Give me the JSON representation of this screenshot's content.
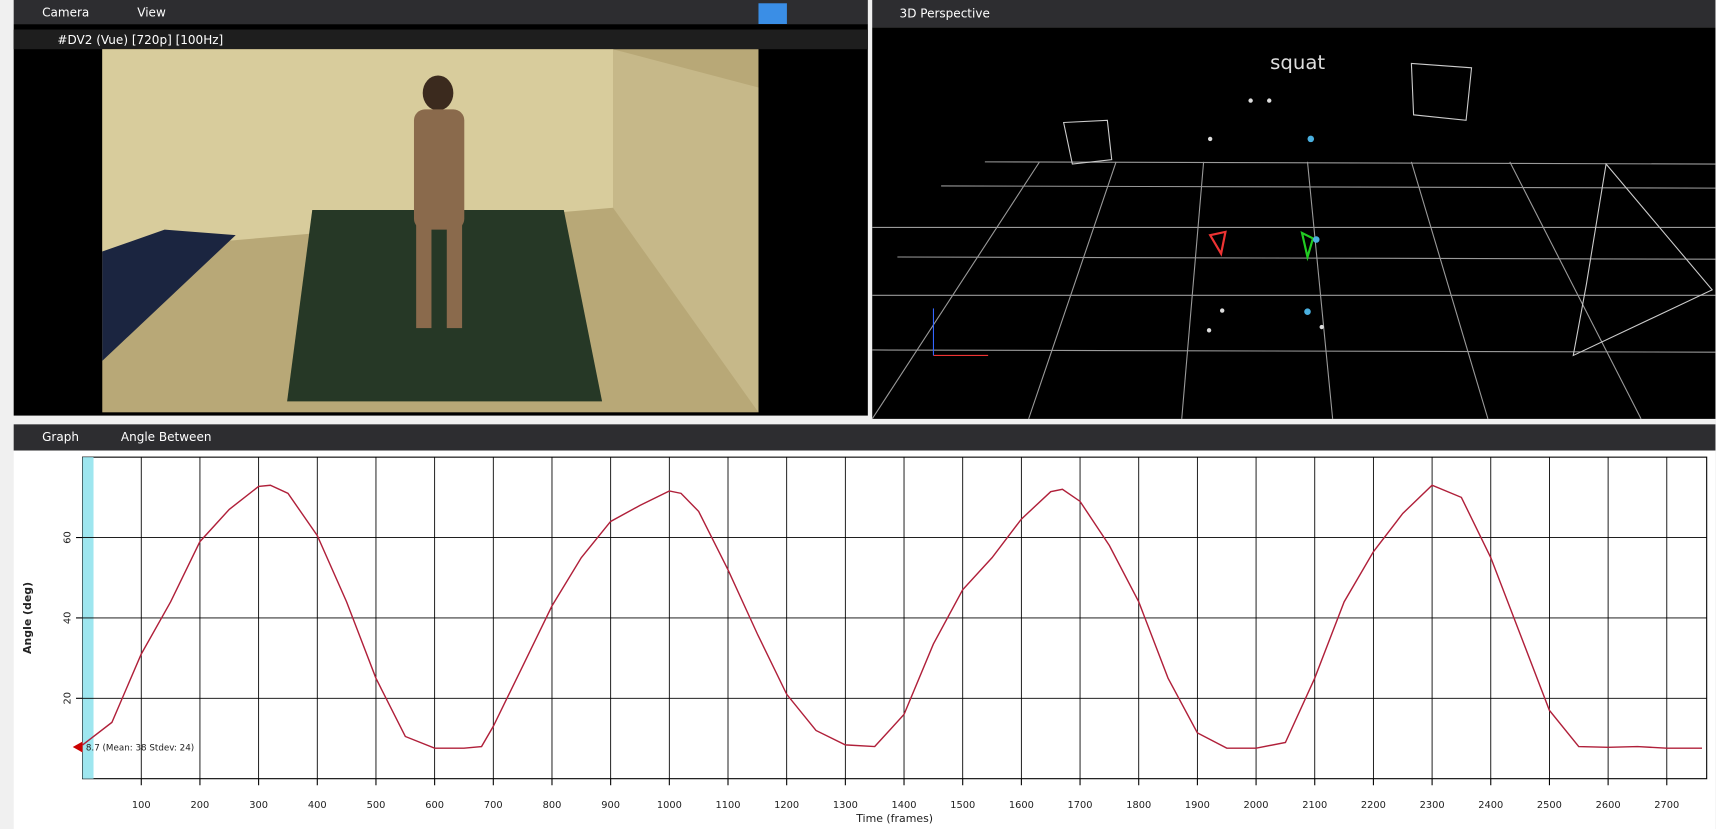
{
  "camera": {
    "title": "Camera",
    "menu": "View",
    "source": "#DV2 (Vue) [720p] [100Hz]"
  },
  "perspective": {
    "title": "3D Perspective",
    "label": "squat"
  },
  "graph": {
    "title": "Graph",
    "selector": "Angle Between"
  },
  "chart_data": {
    "type": "line",
    "x_label": "Time (frames)",
    "y_label": "Angle (deg)",
    "annotation": "8.7 (Mean: 38 Stdev: 24)",
    "color": "#b0203a",
    "grid": true,
    "xlim": [
      0,
      2768
    ],
    "ylim": [
      0,
      80
    ],
    "xticks": [
      100,
      200,
      300,
      400,
      500,
      600,
      700,
      800,
      900,
      1000,
      1100,
      1200,
      1300,
      1400,
      1500,
      1600,
      1700,
      1800,
      1900,
      2000,
      2100,
      2200,
      2300,
      2400,
      2500,
      2600,
      2700
    ],
    "yticks": [
      20,
      40,
      60
    ],
    "x": [
      0,
      50,
      100,
      150,
      200,
      250,
      300,
      320,
      350,
      400,
      450,
      500,
      550,
      600,
      650,
      680,
      700,
      750,
      800,
      850,
      900,
      950,
      1000,
      1020,
      1050,
      1100,
      1150,
      1200,
      1250,
      1300,
      1350,
      1400,
      1450,
      1500,
      1550,
      1600,
      1650,
      1670,
      1700,
      1750,
      1800,
      1850,
      1900,
      1950,
      2000,
      2050,
      2100,
      2150,
      2200,
      2250,
      2300,
      2350,
      2400,
      2450,
      2500,
      2550,
      2600,
      2650,
      2700,
      2760
    ],
    "values": [
      8.4,
      14,
      31,
      44,
      59,
      67,
      72.7,
      73,
      71,
      60.5,
      44,
      25,
      10.5,
      7.6,
      7.6,
      8,
      13,
      28,
      43,
      55,
      64,
      68,
      71.6,
      71,
      66.5,
      52,
      36,
      21,
      12,
      8.4,
      8,
      16,
      33.5,
      47,
      55,
      64.6,
      71.4,
      72,
      69,
      58,
      44,
      25,
      11.4,
      7.6,
      7.6,
      9,
      25,
      44,
      56.5,
      66,
      73,
      70,
      55,
      36,
      17,
      8,
      7.8,
      8,
      7.6,
      7.6
    ]
  }
}
